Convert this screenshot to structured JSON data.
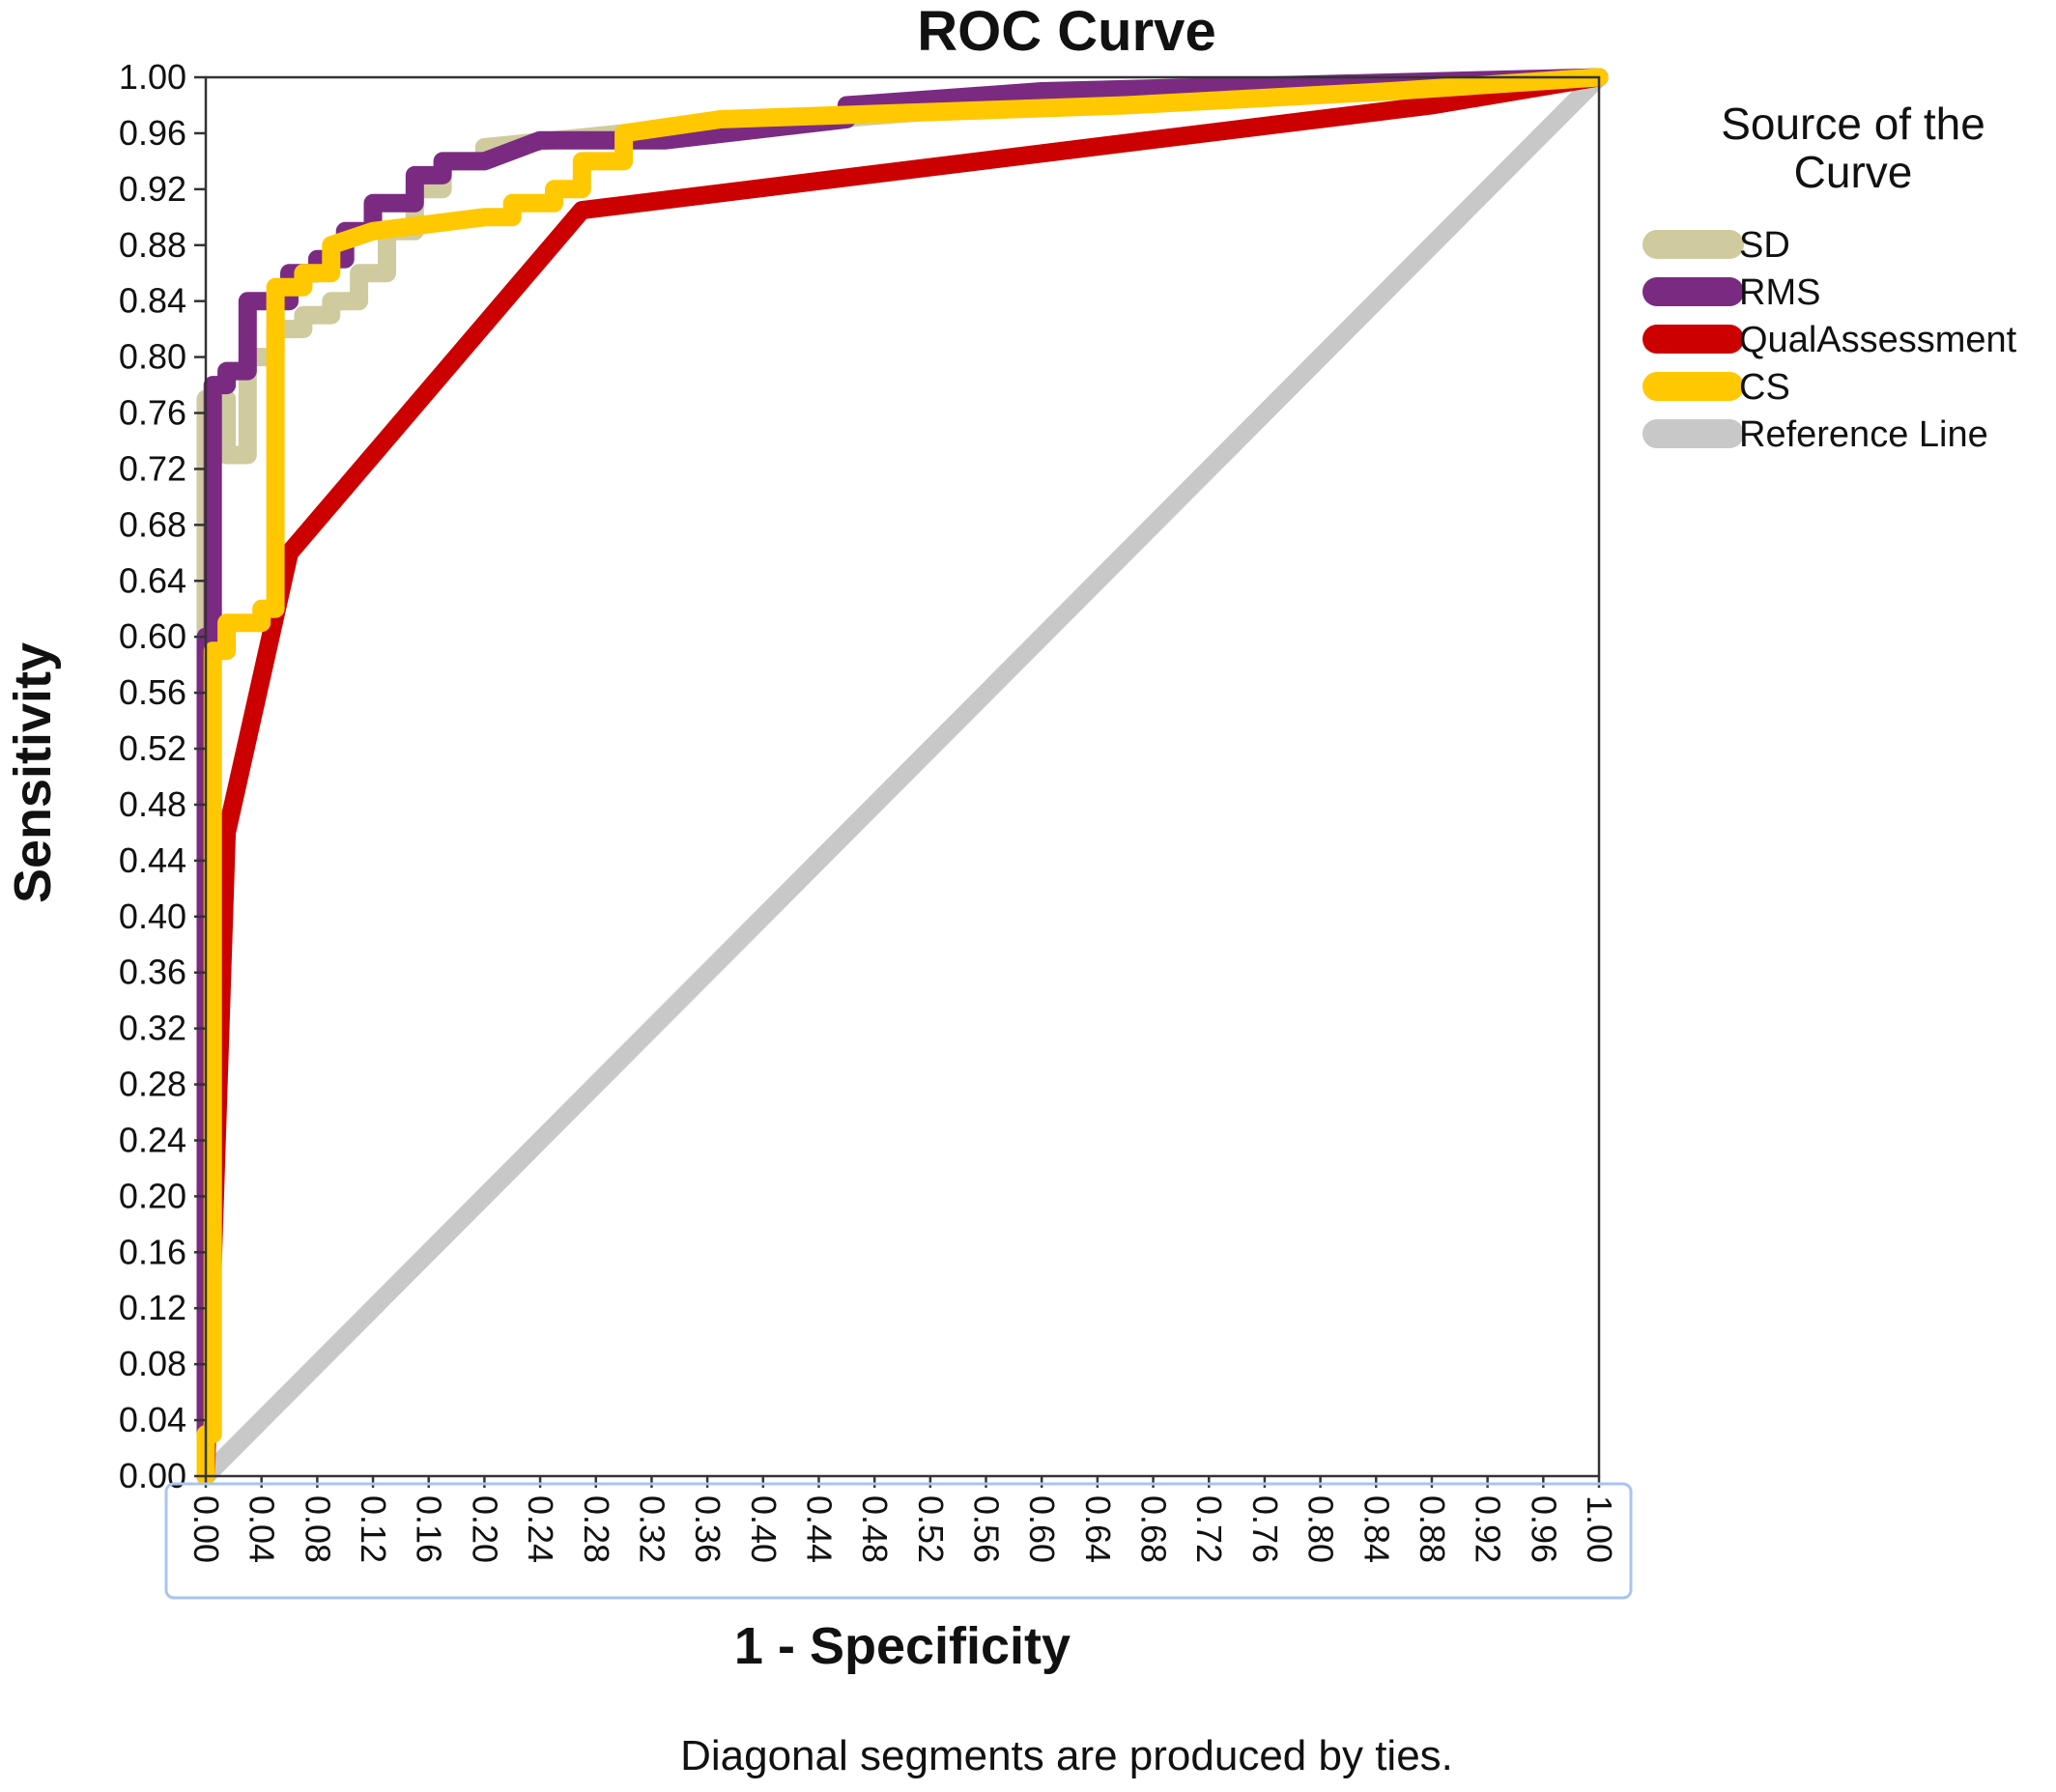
{
  "chart_data": {
    "type": "line",
    "title": "ROC Curve",
    "xlabel": "1 - Specificity",
    "ylabel": "Sensitivity",
    "xlim": [
      0,
      1
    ],
    "ylim": [
      0,
      1
    ],
    "grid": false,
    "legend_placement": "right",
    "legend_title": "Source of the Curve",
    "footnote": "Diagonal segments are produced by ties.",
    "x_ticks": [
      "0.00",
      "0.04",
      "0.08",
      "0.12",
      "0.16",
      "0.20",
      "0.24",
      "0.28",
      "0.32",
      "0.36",
      "0.40",
      "0.44",
      "0.48",
      "0.52",
      "0.56",
      "0.60",
      "0.64",
      "0.68",
      "0.72",
      "0.76",
      "0.80",
      "0.84",
      "0.88",
      "0.92",
      "0.96",
      "1.00"
    ],
    "y_ticks": [
      "0.00",
      "0.04",
      "0.08",
      "0.12",
      "0.16",
      "0.20",
      "0.24",
      "0.28",
      "0.32",
      "0.36",
      "0.40",
      "0.44",
      "0.48",
      "0.52",
      "0.56",
      "0.60",
      "0.64",
      "0.68",
      "0.72",
      "0.76",
      "0.80",
      "0.84",
      "0.88",
      "0.92",
      "0.96",
      "1.00"
    ],
    "series": [
      {
        "name": "SD",
        "color": "#cfcb9f",
        "x": [
          0.0,
          0.0,
          0.015,
          0.015,
          0.03,
          0.03,
          0.05,
          0.05,
          0.07,
          0.07,
          0.09,
          0.09,
          0.11,
          0.11,
          0.13,
          0.13,
          0.15,
          0.15,
          0.17,
          0.17,
          0.2,
          0.2,
          0.3,
          0.45,
          0.7,
          1.0
        ],
        "y": [
          0.0,
          0.77,
          0.77,
          0.73,
          0.73,
          0.8,
          0.8,
          0.82,
          0.82,
          0.83,
          0.83,
          0.84,
          0.84,
          0.86,
          0.86,
          0.89,
          0.89,
          0.92,
          0.92,
          0.94,
          0.94,
          0.95,
          0.96,
          0.97,
          0.99,
          1.0
        ]
      },
      {
        "name": "RMS",
        "color": "#7b2a82",
        "x": [
          0.0,
          0.0,
          0.005,
          0.005,
          0.015,
          0.015,
          0.03,
          0.03,
          0.06,
          0.06,
          0.08,
          0.08,
          0.1,
          0.1,
          0.12,
          0.12,
          0.15,
          0.15,
          0.17,
          0.17,
          0.2,
          0.24,
          0.33,
          0.46,
          0.46,
          0.6,
          0.8,
          1.0
        ],
        "y": [
          0.0,
          0.6,
          0.6,
          0.78,
          0.78,
          0.79,
          0.79,
          0.84,
          0.84,
          0.86,
          0.86,
          0.87,
          0.87,
          0.89,
          0.89,
          0.91,
          0.91,
          0.93,
          0.93,
          0.94,
          0.94,
          0.955,
          0.955,
          0.97,
          0.98,
          0.99,
          0.995,
          1.0
        ]
      },
      {
        "name": "QualAssessment",
        "color": "#cc0000",
        "x": [
          0.0,
          0.015,
          0.06,
          0.27,
          0.88,
          1.0
        ],
        "y": [
          0.0,
          0.46,
          0.66,
          0.905,
          0.98,
          1.0
        ]
      },
      {
        "name": "CS",
        "color": "#ffc800",
        "x": [
          0.0,
          0.0,
          0.005,
          0.005,
          0.015,
          0.015,
          0.04,
          0.04,
          0.05,
          0.05,
          0.07,
          0.07,
          0.09,
          0.09,
          0.12,
          0.2,
          0.22,
          0.22,
          0.25,
          0.25,
          0.27,
          0.27,
          0.3,
          0.3,
          0.37,
          0.66,
          0.85,
          1.0
        ],
        "y": [
          0.0,
          0.03,
          0.03,
          0.59,
          0.59,
          0.61,
          0.61,
          0.62,
          0.62,
          0.85,
          0.85,
          0.86,
          0.86,
          0.88,
          0.89,
          0.9,
          0.9,
          0.91,
          0.91,
          0.92,
          0.92,
          0.94,
          0.94,
          0.96,
          0.97,
          0.98,
          0.99,
          1.0
        ]
      },
      {
        "name": "Reference Line",
        "color": "#c8c8c8",
        "x": [
          0.0,
          1.0
        ],
        "y": [
          0.0,
          1.0
        ]
      }
    ]
  }
}
